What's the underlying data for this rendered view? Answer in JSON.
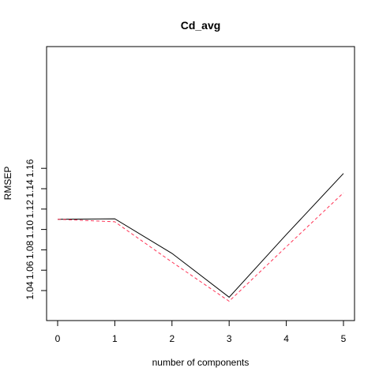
{
  "chart_data": {
    "type": "line",
    "title": "Cd_avg",
    "xlabel": "number of components",
    "ylabel": "RMSEP",
    "x": [
      0,
      1,
      2,
      3,
      4,
      5
    ],
    "xlim": [
      0,
      5
    ],
    "ylim": [
      1.03,
      1.16
    ],
    "x_ticks": [
      "0",
      "1",
      "2",
      "3",
      "4",
      "5"
    ],
    "y_ticks": [
      "1.04",
      "1.06",
      "1.08",
      "1.10",
      "1.12",
      "1.14",
      "1.16"
    ],
    "y_tick_values": [
      1.04,
      1.06,
      1.08,
      1.1,
      1.12,
      1.14,
      1.16
    ],
    "grid": false,
    "series": [
      {
        "style": "solid",
        "color": "#000000",
        "values": [
          1.11,
          1.1105,
          1.0765,
          1.0335,
          1.095,
          1.155
        ]
      },
      {
        "style": "dashed",
        "color": "#ff3355",
        "values": [
          1.11,
          1.1075,
          1.068,
          1.0295,
          1.083,
          1.136
        ]
      }
    ]
  }
}
